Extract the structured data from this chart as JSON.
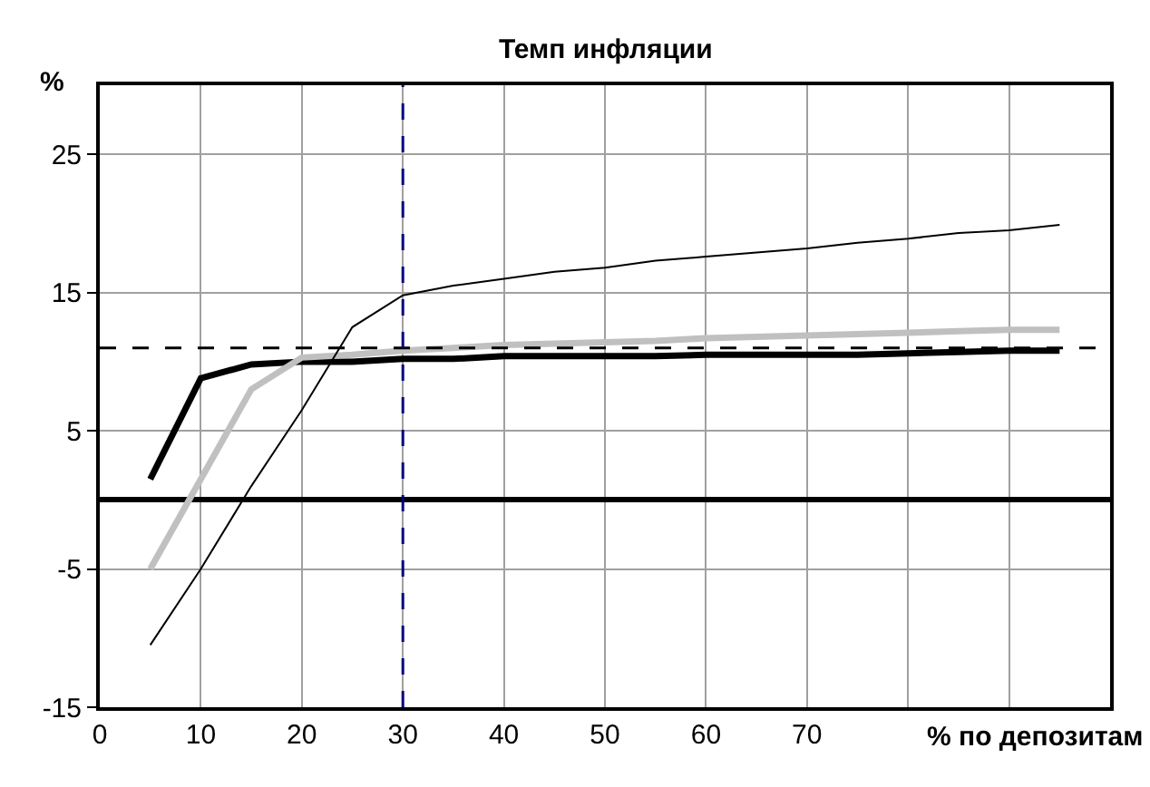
{
  "chart_data": {
    "type": "line",
    "title": "Темп инфляции",
    "xlabel": "% по депозитам",
    "ylabel": "%",
    "x": [
      5,
      10,
      15,
      20,
      25,
      30,
      35,
      40,
      45,
      50,
      55,
      60,
      65,
      70,
      75,
      80,
      85,
      90,
      95
    ],
    "series": [
      {
        "color": "#000000",
        "values": [
          1.5,
          8.8,
          9.8,
          10,
          10,
          10.2,
          10.2,
          10.4,
          10.4,
          10.4,
          10.4,
          10.5,
          10.5,
          10.5,
          10.5,
          10.6,
          10.7,
          10.8,
          10.8
        ]
      },
      {
        "color": "#c0c0c0",
        "values": [
          -5,
          1.5,
          8,
          10.3,
          10.5,
          10.8,
          11,
          11.2,
          11.3,
          11.4,
          11.5,
          11.7,
          11.8,
          11.9,
          12,
          12.1,
          12.2,
          12.3,
          12.3
        ]
      },
      {
        "color": "#000000",
        "values": [
          -10.5,
          -5,
          1,
          6.5,
          12.5,
          14.8,
          15.5,
          16,
          16.5,
          16.8,
          17.3,
          17.6,
          17.9,
          18.2,
          18.6,
          18.9,
          19.3,
          19.5,
          19.9
        ]
      }
    ],
    "xlim": [
      0,
      100
    ],
    "xticks": [
      0,
      10,
      20,
      30,
      40,
      50,
      60,
      70,
      {
        "value": 80,
        "label": null
      },
      {
        "value": 90,
        "label": null
      }
    ],
    "ylim": [
      -15,
      30
    ],
    "yticks": [
      -15,
      -5,
      5,
      15,
      25
    ],
    "ref_lines": [
      {
        "axis": "y",
        "value": 11,
        "color": "#000000",
        "line_style": "dashed"
      },
      {
        "axis": "x",
        "value": 30,
        "color": "#000080",
        "line_style": "dashed"
      }
    ],
    "grid": true,
    "marker": "none",
    "line_style": "solid"
  }
}
